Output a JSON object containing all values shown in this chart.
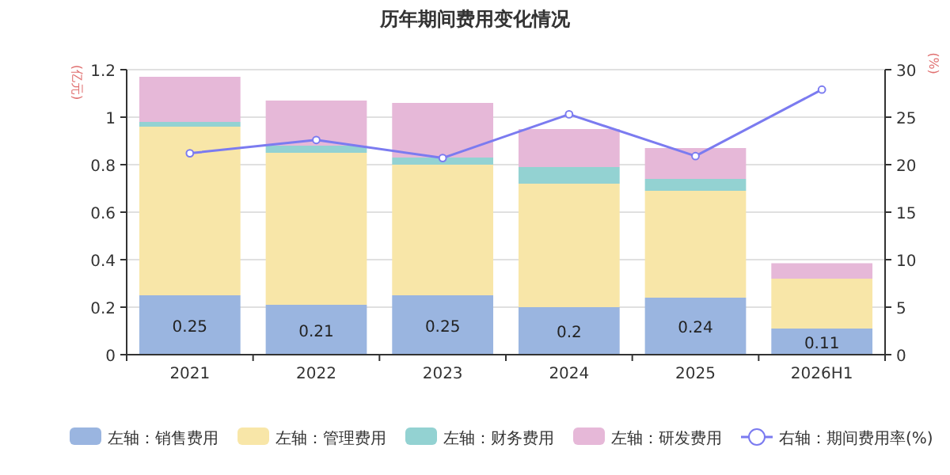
{
  "chart_data": {
    "type": "bar",
    "title": "历年期间费用变化情况",
    "ylabel": "(亿元)",
    "y2label": "(%)",
    "categories": [
      "2021",
      "2022",
      "2023",
      "2024",
      "2025",
      "2026H1"
    ],
    "stacked": true,
    "grid": "y",
    "legend": "bottom",
    "ylim": [
      0,
      1.2
    ],
    "yticks": [
      0,
      0.2,
      0.4,
      0.6,
      0.8,
      1,
      1.2
    ],
    "y2lim": [
      0,
      30
    ],
    "y2ticks": [
      0,
      5,
      10,
      15,
      20,
      25,
      30
    ],
    "series": [
      {
        "name": "左轴：销售费用",
        "color": "#9ab5e0",
        "values": [
          0.25,
          0.21,
          0.25,
          0.2,
          0.24,
          0.11
        ],
        "value_labels": [
          "0.25",
          "0.21",
          "0.25",
          "0.2",
          "0.24",
          "0.11"
        ]
      },
      {
        "name": "左轴：管理费用",
        "color": "#f8e6a8",
        "values": [
          0.71,
          0.64,
          0.55,
          0.52,
          0.45,
          0.21
        ]
      },
      {
        "name": "左轴：财务费用",
        "color": "#93d2d2",
        "values": [
          0.02,
          0.03,
          0.03,
          0.07,
          0.05,
          0
        ]
      },
      {
        "name": "左轴：研发费用",
        "color": "#e6b8d8",
        "values": [
          0.19,
          0.19,
          0.23,
          0.16,
          0.13,
          0.065
        ]
      },
      {
        "name": "右轴：期间费用率(%)",
        "type": "line",
        "axis": "y2",
        "marker": "circle",
        "color": "#7b7bf0",
        "values": [
          21.2,
          22.6,
          20.7,
          25.3,
          20.9,
          27.9
        ]
      }
    ]
  }
}
